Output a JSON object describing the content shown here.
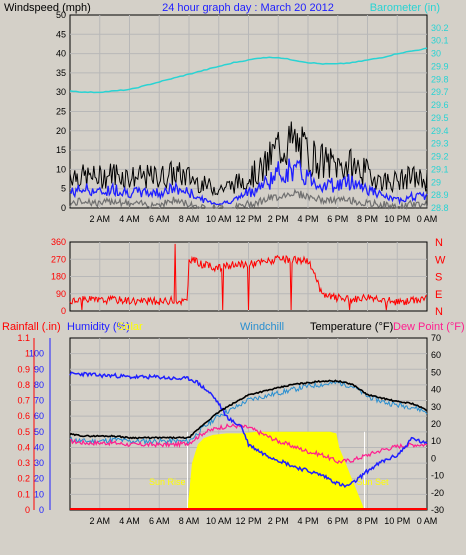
{
  "colors": {
    "bg": "#d4d0c8",
    "grid": "#b8b8b8",
    "wind": "#000000",
    "gust": "#1f1fff",
    "wind_grey": "#707070",
    "barometer": "#29d3d3",
    "direction": "#ff0000",
    "rainfall": "#ff0000",
    "humidity": "#1f1fff",
    "solar": "#ffff00",
    "windchill": "#2a8fd0",
    "temperature": "#000000",
    "dewpoint": "#ff1f8f"
  },
  "chart_data": [
    {
      "type": "line",
      "title": "24 hour graph day : March 20 2012",
      "ylabel": "Windspeed (mph)",
      "y2label": "Barometer (in)",
      "ylim": [
        0,
        50
      ],
      "yticks": [
        0,
        5,
        10,
        15,
        20,
        25,
        30,
        35,
        40,
        45,
        50
      ],
      "y2lim": [
        28.8,
        30.3
      ],
      "y2ticks": [
        "28.8",
        "28.9",
        "29",
        "29.1",
        "29.2",
        "29.3",
        "29.4",
        "29.5",
        "29.6",
        "29.7",
        "29.8",
        "29.9",
        "30",
        "30.1",
        "30.2"
      ],
      "xticks": [
        "2 AM",
        "4 AM",
        "6 AM",
        "8 AM",
        "10 AM",
        "12 PM",
        "2 PM",
        "4 PM",
        "6 PM",
        "8 PM",
        "10 PM",
        "0 AM"
      ],
      "xlim": [
        0,
        24
      ],
      "grid": true,
      "series": [
        {
          "key": "barometer",
          "axis": "right",
          "x": [
            0,
            1,
            2,
            3,
            4,
            5,
            6,
            7,
            8,
            9,
            10,
            11,
            12,
            13,
            14,
            15,
            16,
            17,
            18,
            19,
            20,
            21,
            22,
            23,
            24
          ],
          "values": [
            29.71,
            29.7,
            29.7,
            29.71,
            29.72,
            29.75,
            29.78,
            29.81,
            29.84,
            29.87,
            29.9,
            29.93,
            29.95,
            29.97,
            29.97,
            29.95,
            29.93,
            29.92,
            29.92,
            29.93,
            29.95,
            29.97,
            30.0,
            30.02,
            30.04
          ]
        },
        {
          "key": "wind_max",
          "axis": "left",
          "x": [
            0,
            1,
            2,
            3,
            4,
            5,
            6,
            7,
            8,
            9,
            10,
            11,
            12,
            13,
            14,
            15,
            16,
            17,
            18,
            19,
            20,
            21,
            22,
            23,
            24
          ],
          "values": [
            9,
            8,
            8,
            9,
            8,
            8,
            8,
            9,
            8,
            6,
            5,
            6,
            8,
            10,
            16,
            17,
            14,
            12,
            11,
            11,
            9,
            7,
            7,
            8,
            7
          ]
        },
        {
          "key": "wind_avg",
          "axis": "left",
          "x": [
            0,
            1,
            2,
            3,
            4,
            5,
            6,
            7,
            8,
            9,
            10,
            11,
            12,
            13,
            14,
            15,
            16,
            17,
            18,
            19,
            20,
            21,
            22,
            23,
            24
          ],
          "values": [
            4,
            5,
            4,
            5,
            4,
            4,
            4,
            5,
            4,
            2,
            1,
            2,
            4,
            6,
            9,
            10,
            8,
            6,
            6,
            7,
            5,
            3,
            2,
            3,
            3
          ]
        },
        {
          "key": "wind_min",
          "axis": "left",
          "x": [
            0,
            1,
            2,
            3,
            4,
            5,
            6,
            7,
            8,
            9,
            10,
            11,
            12,
            13,
            14,
            15,
            16,
            17,
            18,
            19,
            20,
            21,
            22,
            23,
            24
          ],
          "values": [
            1,
            2,
            1,
            2,
            1,
            1,
            1,
            2,
            1,
            0,
            0,
            0,
            1,
            2,
            3,
            4,
            3,
            2,
            2,
            2,
            1,
            1,
            0,
            1,
            1
          ]
        }
      ]
    },
    {
      "type": "line",
      "ylim": [
        0,
        360
      ],
      "yticks": [
        0,
        90,
        180,
        270,
        360
      ],
      "y2ticks": [
        "N",
        "E",
        "S",
        "W",
        "N"
      ],
      "xlim": [
        0,
        24
      ],
      "grid": true,
      "series": [
        {
          "key": "direction",
          "x": [
            0,
            1,
            2,
            3,
            4,
            5,
            6,
            7,
            7.9,
            8,
            9,
            10,
            11,
            12,
            13,
            14,
            15,
            16,
            17,
            18,
            19,
            20,
            21,
            22,
            23,
            24
          ],
          "values": [
            50,
            60,
            55,
            60,
            55,
            50,
            50,
            55,
            50,
            275,
            240,
            225,
            240,
            245,
            255,
            270,
            265,
            265,
            80,
            70,
            60,
            75,
            65,
            45,
            55,
            70
          ]
        }
      ]
    },
    {
      "type": "line",
      "ylabel": "Rainfall (.in)",
      "y_humidity_label": "Humidity (%)",
      "solar_label": "Solar",
      "windchill_label": "Windchill",
      "y2label": "Temperature (°F)",
      "dew_label": "Dew Point (°F)",
      "sunrise_label": "Sun Rise",
      "sunset_label": "Sun Set",
      "sunrise": 7.9,
      "sunset": 19.8,
      "rainfall_ticks": [
        "0",
        "0.1",
        "0.2",
        "0.3",
        "0.4",
        "0.5",
        "0.6",
        "0.7",
        "0.8",
        "0.9",
        "1",
        "1.1"
      ],
      "humidity_ticks": [
        0,
        10,
        20,
        30,
        40,
        50,
        60,
        70,
        80,
        90,
        100
      ],
      "ylim": [
        0,
        110
      ],
      "y2lim": [
        -30,
        70
      ],
      "y2ticks": [
        -30,
        -20,
        -10,
        0,
        10,
        20,
        30,
        40,
        50,
        60,
        70
      ],
      "xlim": [
        0,
        24
      ],
      "grid": true,
      "series": [
        {
          "key": "solar",
          "axis": "humidity",
          "x": [
            0,
            7.9,
            8.2,
            8.6,
            9,
            9.6,
            10.5,
            11.5,
            12.5,
            13,
            14,
            15,
            16,
            17,
            17.5,
            17.9,
            18.1,
            19.8,
            24
          ],
          "values": [
            0,
            0,
            30,
            42,
            46,
            48,
            49,
            49,
            50,
            50,
            50,
            50,
            50,
            50,
            50,
            49,
            40,
            0,
            0
          ]
        },
        {
          "key": "humidity",
          "axis": "humidity",
          "x": [
            0,
            1,
            2,
            3,
            4,
            5,
            6,
            7,
            8,
            8.5,
            9,
            9.5,
            10,
            10.5,
            11,
            11.5,
            12,
            13,
            14,
            15,
            16,
            17,
            18,
            18.5,
            19,
            20,
            21,
            22,
            22.5,
            23,
            24
          ],
          "values": [
            87,
            87,
            86,
            86,
            85,
            85,
            85,
            84,
            84,
            82,
            78,
            74,
            68,
            60,
            56,
            54,
            42,
            36,
            32,
            28,
            25,
            22,
            17,
            15,
            17,
            25,
            31,
            35,
            40,
            46,
            42
          ]
        },
        {
          "key": "windchill",
          "axis": "temp",
          "x": [
            0,
            1,
            2,
            3,
            4,
            5,
            6,
            7,
            8,
            9,
            10,
            11,
            12,
            13,
            14,
            15,
            16,
            17,
            18,
            19,
            20,
            21,
            22,
            23,
            24
          ],
          "values": [
            11,
            10,
            10,
            11,
            10,
            10,
            10,
            10,
            10,
            18,
            25,
            29,
            34,
            36,
            38,
            40,
            42,
            43,
            44,
            42,
            36,
            33,
            31,
            30,
            27
          ]
        },
        {
          "key": "temperature",
          "axis": "temp",
          "x": [
            0,
            1,
            2,
            3,
            4,
            5,
            6,
            7,
            8,
            9,
            10,
            11,
            12,
            13,
            14,
            15,
            16,
            17,
            18,
            19,
            20,
            21,
            22,
            23,
            24
          ],
          "values": [
            14,
            13,
            13,
            13,
            12,
            12,
            12,
            12,
            12,
            20,
            27,
            32,
            37,
            39,
            41,
            43,
            44,
            45,
            45,
            43,
            37,
            35,
            33,
            32,
            28
          ]
        },
        {
          "key": "dewpoint",
          "axis": "temp",
          "x": [
            0,
            1,
            2,
            3,
            4,
            5,
            6,
            7,
            8,
            9,
            10,
            11,
            12,
            13,
            14,
            15,
            16,
            17,
            18,
            19,
            20,
            21,
            22,
            23,
            24
          ],
          "values": [
            10,
            9,
            9,
            9,
            8,
            8,
            8,
            8,
            9,
            15,
            18,
            19,
            18,
            14,
            10,
            7,
            4,
            2,
            -2,
            -1,
            2,
            5,
            7,
            8,
            8
          ]
        },
        {
          "key": "rainfall",
          "axis": "rainfall",
          "x": [
            0,
            24
          ],
          "values": [
            0,
            0
          ]
        }
      ]
    }
  ]
}
